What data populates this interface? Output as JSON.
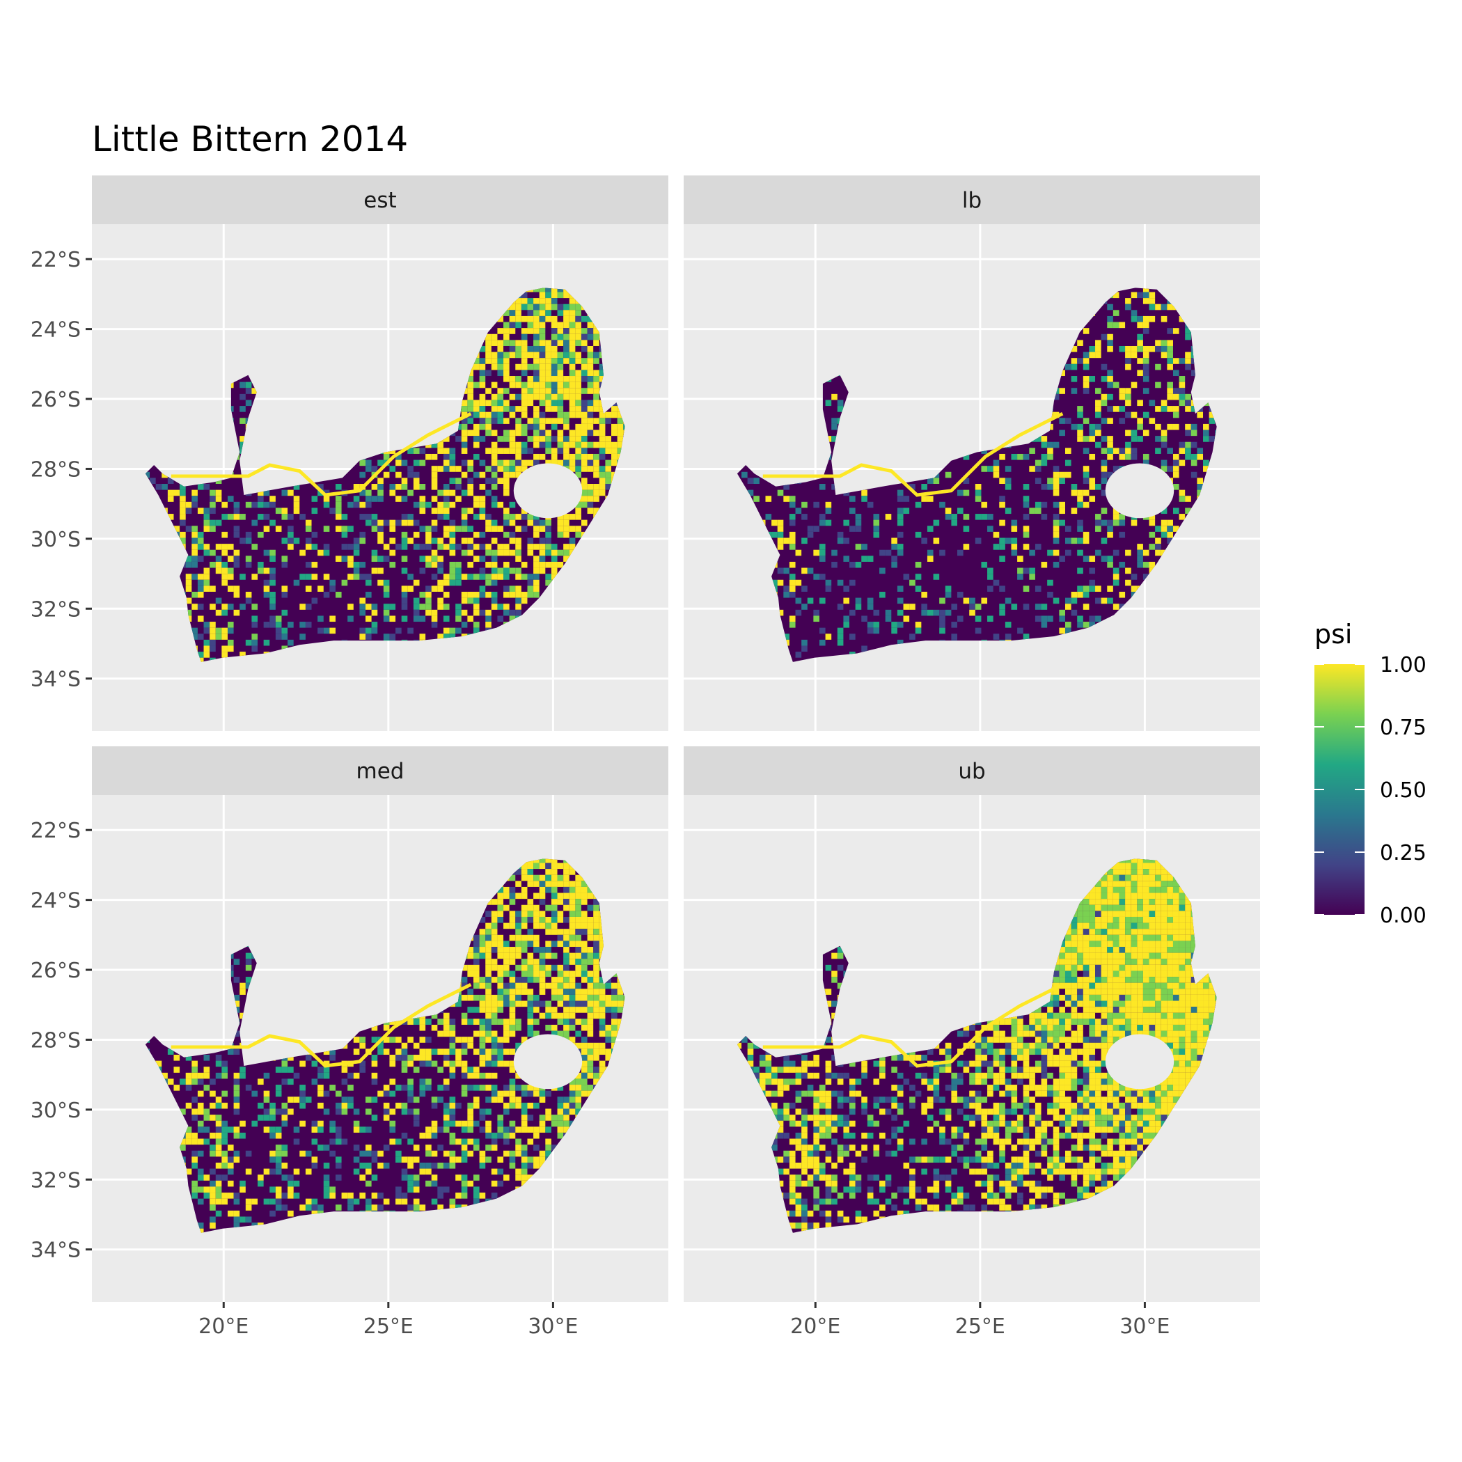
{
  "title": "Little Bittern 2014",
  "panels": [
    {
      "label": "est",
      "high_fraction": 0.45
    },
    {
      "label": "lb",
      "high_fraction": 0.18
    },
    {
      "label": "med",
      "high_fraction": 0.45
    },
    {
      "label": "ub",
      "high_fraction": 0.75
    }
  ],
  "axes": {
    "x_ticks": [
      "20°E",
      "25°E",
      "30°E"
    ],
    "y_ticks": [
      "22°S",
      "24°S",
      "26°S",
      "28°S",
      "30°S",
      "32°S",
      "34°S"
    ]
  },
  "legend": {
    "title": "psi",
    "labels": [
      "1.00",
      "0.75",
      "0.50",
      "0.25",
      "0.00"
    ],
    "colors": [
      "#fde725",
      "#7ad151",
      "#22a884",
      "#2a788e",
      "#414487",
      "#440154"
    ]
  },
  "colors": {
    "panel_bg": "#ebebeb",
    "strip_bg": "#d9d9d9",
    "grid": "#ffffff",
    "low": "#440154",
    "high": "#fde725"
  },
  "chart_data": {
    "type": "heatmap",
    "variable": "psi",
    "facets": [
      "est",
      "lb",
      "med",
      "ub"
    ],
    "x_range": [
      16.0,
      33.5
    ],
    "y_range": [
      -35.5,
      -21.0
    ],
    "value_range": [
      0,
      1
    ],
    "grid": true,
    "legend_position": "right"
  }
}
